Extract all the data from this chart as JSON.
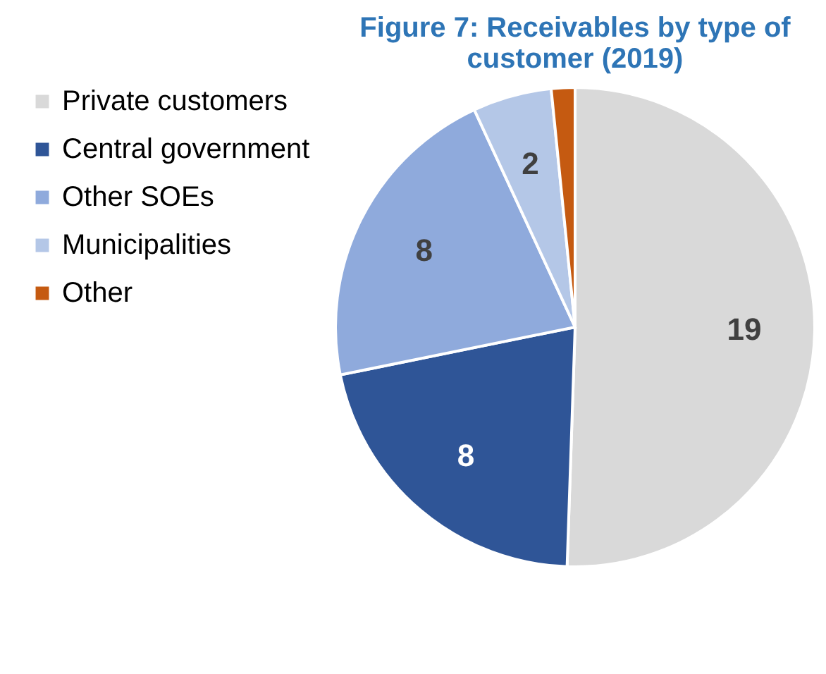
{
  "chart_data": {
    "type": "pie",
    "title": "Figure 7: Receivables by type of customer (2019)",
    "categories": [
      "Private customers",
      "Central government",
      "Other SOEs",
      "Municipalities",
      "Other"
    ],
    "values": [
      19,
      8,
      8,
      2,
      0.6
    ],
    "value_labels": [
      "19",
      "8",
      "8",
      "2",
      null
    ],
    "colors": [
      "#d9d9d9",
      "#2f5597",
      "#8faadc",
      "#b4c7e7",
      "#c55a11"
    ],
    "legend": "left"
  }
}
